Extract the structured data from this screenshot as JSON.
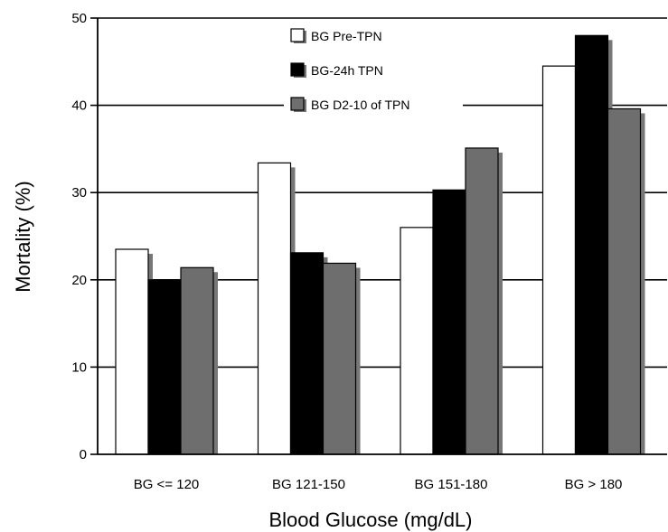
{
  "chart_data": {
    "type": "bar",
    "title": "",
    "xlabel": "Blood Glucose (mg/dL)",
    "ylabel": "Mortality (%)",
    "ylim": [
      0,
      50
    ],
    "yticks": [
      0,
      10,
      20,
      30,
      40,
      50
    ],
    "grid": "horizontal",
    "legend_position": "top-center",
    "categories": [
      "BG <= 120",
      "BG 121-150",
      "BG 151-180",
      "BG > 180"
    ],
    "series": [
      {
        "name": "BG Pre-TPN",
        "color": "#ffffff",
        "values": [
          23.5,
          33.4,
          26.0,
          44.5
        ]
      },
      {
        "name": "BG-24h TPN",
        "color": "#000000",
        "values": [
          20.0,
          23.1,
          30.3,
          48.0
        ]
      },
      {
        "name": "BG D2-10 of TPN",
        "color": "#6e6e6e",
        "values": [
          21.4,
          21.9,
          35.1,
          39.6
        ]
      }
    ]
  }
}
